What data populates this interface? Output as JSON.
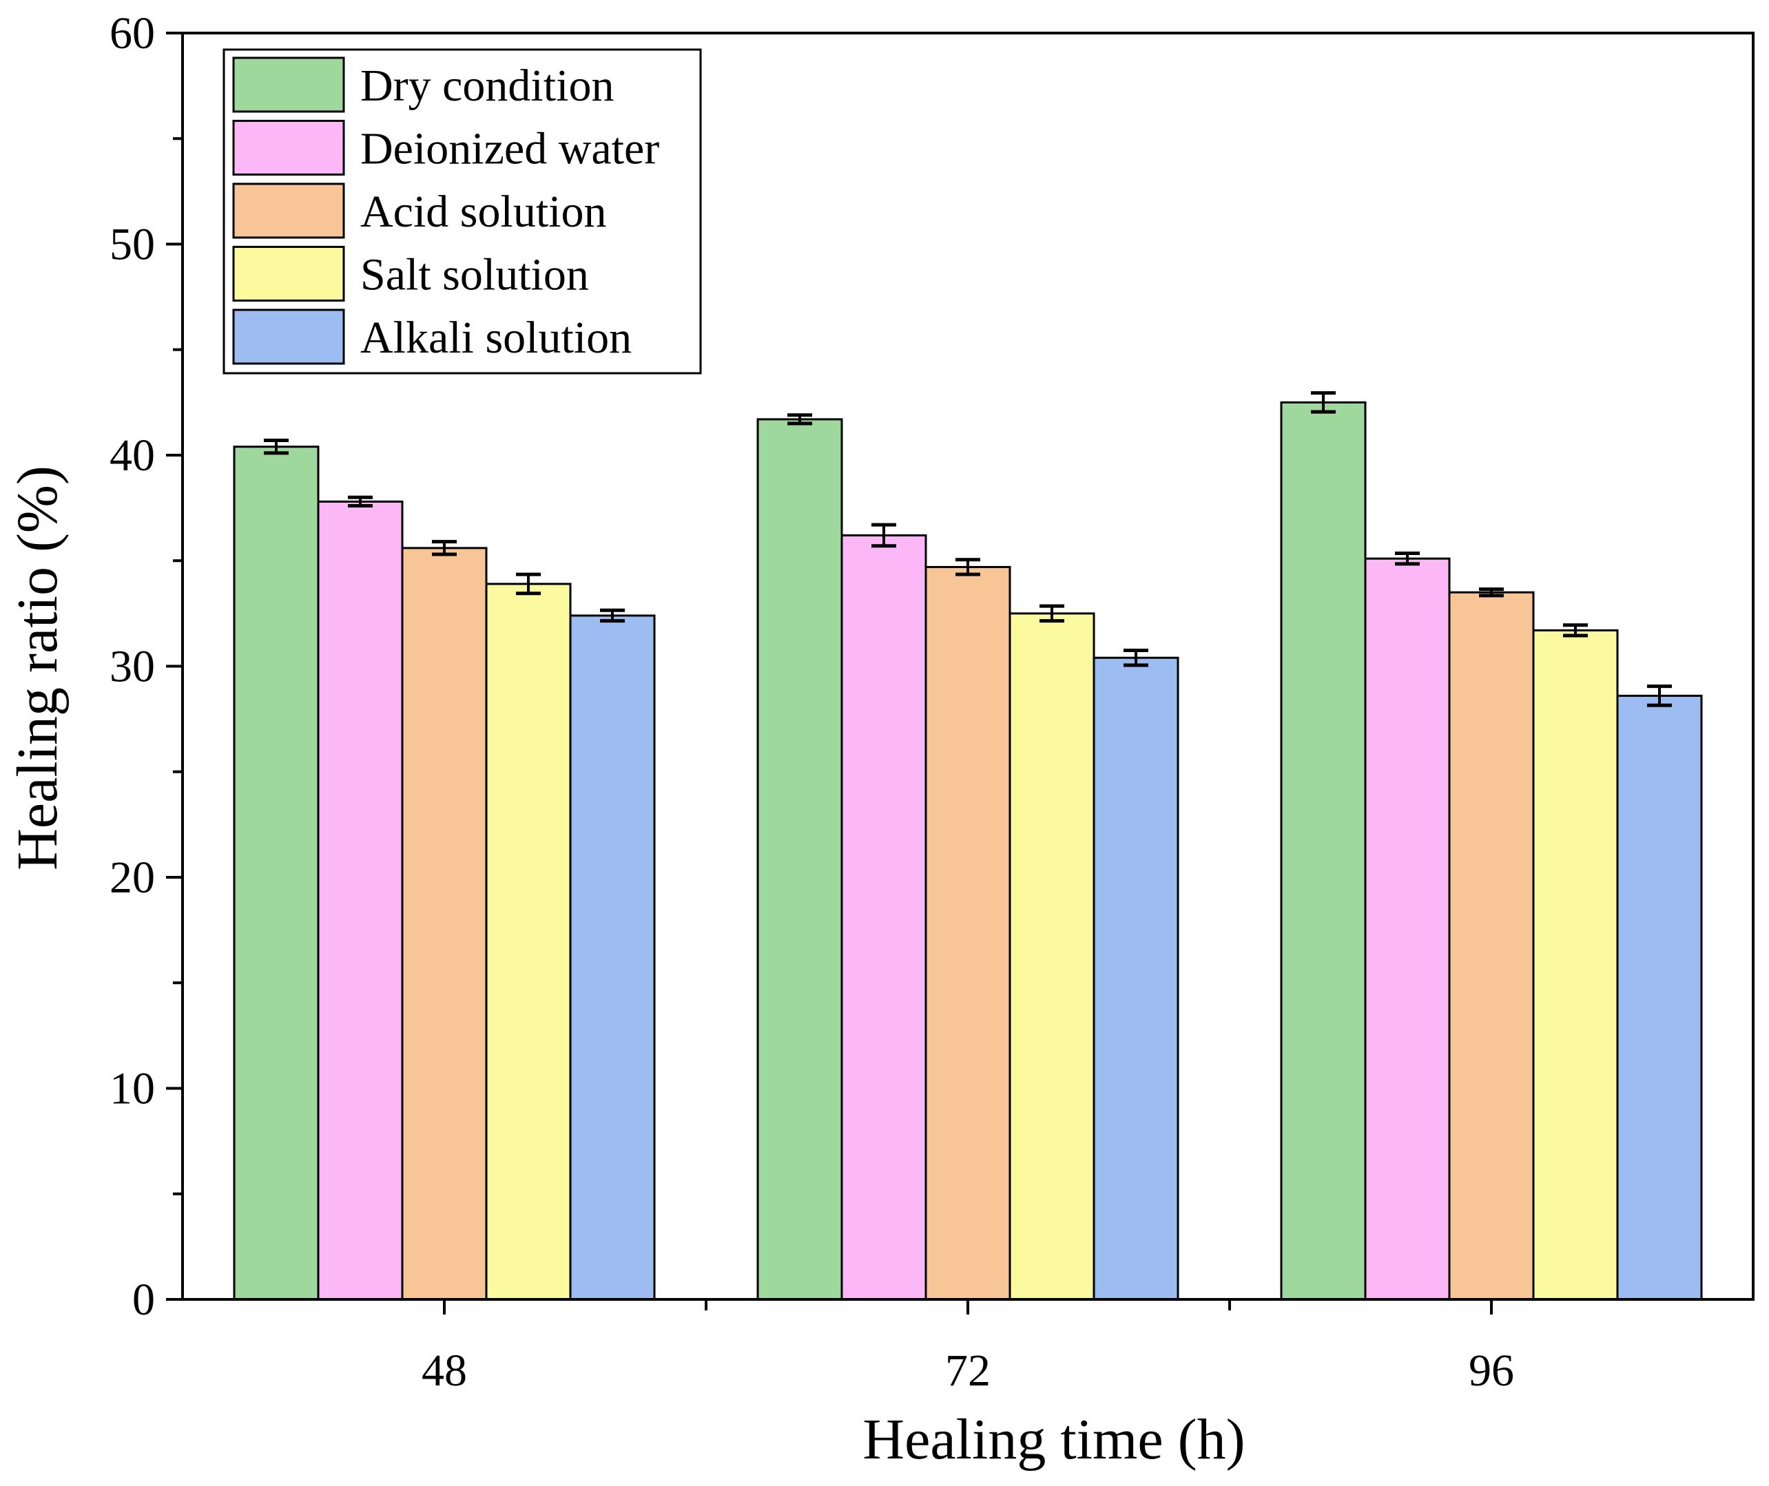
{
  "chart_data": {
    "type": "bar",
    "title": "",
    "xlabel": "Healing time (h)",
    "ylabel": "Healing ratio (%)",
    "ylim": [
      0,
      60
    ],
    "yticks": [
      0,
      10,
      20,
      30,
      40,
      50,
      60
    ],
    "categories": [
      "48",
      "72",
      "96"
    ],
    "legend_position": "top-left",
    "series": [
      {
        "name": "Dry condition",
        "color": "#9ed89c",
        "values": [
          40.4,
          41.7,
          42.5
        ],
        "errors": [
          0.3,
          0.2,
          0.45
        ]
      },
      {
        "name": "Deionized water",
        "color": "#fbb7f6",
        "values": [
          37.8,
          36.2,
          35.1
        ],
        "errors": [
          0.2,
          0.5,
          0.25
        ]
      },
      {
        "name": "Acid solution",
        "color": "#f8c596",
        "values": [
          35.6,
          34.7,
          33.5
        ],
        "errors": [
          0.3,
          0.35,
          0.15
        ]
      },
      {
        "name": "Salt solution",
        "color": "#fbfa9e",
        "values": [
          33.9,
          32.5,
          31.7
        ],
        "errors": [
          0.45,
          0.35,
          0.25
        ]
      },
      {
        "name": "Alkali solution",
        "color": "#9dbdf2",
        "values": [
          32.4,
          30.4,
          28.6
        ],
        "errors": [
          0.25,
          0.35,
          0.45
        ]
      }
    ]
  }
}
